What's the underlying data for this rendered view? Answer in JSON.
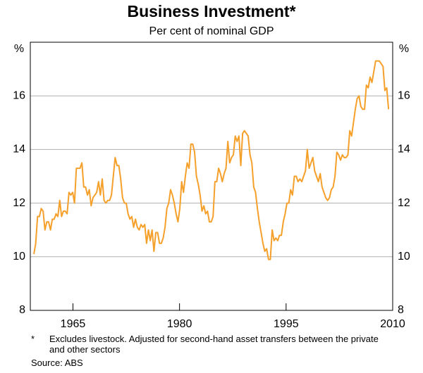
{
  "chart_data": {
    "type": "line",
    "title": "Business Investment*",
    "subtitle": "Per cent of nominal GDP",
    "y_unit": "%",
    "footnote_marker": "*",
    "footnote": "Excludes livestock. Adjusted for second-hand asset transfers between the private and other sectors",
    "source": "Source: ABS",
    "xlim": [
      1959,
      2010
    ],
    "xticks": [
      1965,
      1980,
      1995,
      2010
    ],
    "ylim": [
      8,
      18
    ],
    "yticks": [
      8,
      10,
      12,
      14,
      16
    ],
    "grid": true,
    "series": [
      {
        "color": "#f5a02a",
        "x": [
          1959.5,
          1959.76,
          1960.02,
          1960.28,
          1960.54,
          1960.8,
          1961.06,
          1961.32,
          1961.58,
          1961.84,
          1962.1,
          1962.36,
          1962.62,
          1962.88,
          1963.14,
          1963.4,
          1963.66,
          1963.92,
          1964.18,
          1964.44,
          1964.7,
          1964.96,
          1965.22,
          1965.48,
          1965.74,
          1966,
          1966.26,
          1966.52,
          1966.78,
          1967.04,
          1967.3,
          1967.56,
          1967.82,
          1968.08,
          1968.34,
          1968.6,
          1968.86,
          1969.12,
          1969.38,
          1969.64,
          1969.9,
          1970.16,
          1970.42,
          1970.68,
          1970.94,
          1971.2,
          1971.46,
          1971.72,
          1971.98,
          1972.24,
          1972.5,
          1972.76,
          1973.02,
          1973.28,
          1973.54,
          1973.8,
          1974.06,
          1974.32,
          1974.58,
          1974.84,
          1975.1,
          1975.36,
          1975.62,
          1975.88,
          1976.14,
          1976.4,
          1976.66,
          1976.92,
          1977.18,
          1977.44,
          1977.7,
          1977.96,
          1978.22,
          1978.48,
          1978.74,
          1979,
          1979.26,
          1979.52,
          1979.78,
          1980.04,
          1980.3,
          1980.56,
          1980.82,
          1981.08,
          1981.34,
          1981.6,
          1981.86,
          1982.12,
          1982.38,
          1982.64,
          1982.9,
          1983.16,
          1983.42,
          1983.68,
          1983.94,
          1984.2,
          1984.46,
          1984.72,
          1984.98,
          1985.24,
          1985.5,
          1985.76,
          1986.02,
          1986.28,
          1986.54,
          1986.8,
          1987.06,
          1987.32,
          1987.58,
          1987.84,
          1988.1,
          1988.36,
          1988.62,
          1988.88,
          1989.14,
          1989.4,
          1989.66,
          1989.92,
          1990.18,
          1990.44,
          1990.7,
          1990.96,
          1991.22,
          1991.48,
          1991.74,
          1992,
          1992.26,
          1992.52,
          1992.78,
          1993.04,
          1993.3,
          1993.56,
          1993.82,
          1994.08,
          1994.34,
          1994.6,
          1994.86,
          1995.12,
          1995.38,
          1995.64,
          1995.9,
          1996.16,
          1996.42,
          1996.68,
          1996.94,
          1997.2,
          1997.46,
          1997.72,
          1997.98,
          1998.24,
          1998.5,
          1998.76,
          1999.02,
          1999.28,
          1999.54,
          1999.8,
          2000.06,
          2000.32,
          2000.58,
          2000.84,
          2001.1,
          2001.36,
          2001.62,
          2001.88,
          2002.14,
          2002.4,
          2002.66,
          2002.92,
          2003.18,
          2003.44,
          2003.7,
          2003.96,
          2004.22,
          2004.48,
          2004.74,
          2005,
          2005.26,
          2005.52,
          2005.78,
          2006.04,
          2006.3,
          2006.56,
          2006.82,
          2007.08,
          2007.34,
          2007.6,
          2007.86,
          2008.12,
          2008.38,
          2008.64,
          2008.9,
          2009.16,
          2009.42
        ],
        "values": [
          10.1,
          10.5,
          11.5,
          11.5,
          11.8,
          11.7,
          11.0,
          11.3,
          11.3,
          11.0,
          11.4,
          11.4,
          11.6,
          11.5,
          12.1,
          11.5,
          11.7,
          11.7,
          11.6,
          12.4,
          12.3,
          12.4,
          12.0,
          13.3,
          13.3,
          13.3,
          13.5,
          12.6,
          12.6,
          12.3,
          12.5,
          11.9,
          12.2,
          12.3,
          12.4,
          12.8,
          12.3,
          12.9,
          12.1,
          12.0,
          12.1,
          12.1,
          12.3,
          13.0,
          13.7,
          13.4,
          13.4,
          12.9,
          12.2,
          12.0,
          12.0,
          11.6,
          11.4,
          11.5,
          11.1,
          11.4,
          11.1,
          11.0,
          11.2,
          11.1,
          11.2,
          10.5,
          11.0,
          10.6,
          11.0,
          10.2,
          10.9,
          10.9,
          10.5,
          10.5,
          10.7,
          11.1,
          11.8,
          12.0,
          12.5,
          12.3,
          12.0,
          11.6,
          11.3,
          11.8,
          12.8,
          12.4,
          13.0,
          13.5,
          13.3,
          14.2,
          14.2,
          13.9,
          13.0,
          12.7,
          12.3,
          11.7,
          11.9,
          11.6,
          11.7,
          11.3,
          11.3,
          11.5,
          12.8,
          12.8,
          13.3,
          13.1,
          12.8,
          13.1,
          13.3,
          14.3,
          13.5,
          13.7,
          13.8,
          14.5,
          14.3,
          14.5,
          13.4,
          14.6,
          14.7,
          14.6,
          14.5,
          13.8,
          13.5,
          12.6,
          12.4,
          11.8,
          11.3,
          10.9,
          10.5,
          10.2,
          10.3,
          9.9,
          9.9,
          11.0,
          10.6,
          10.7,
          10.6,
          10.8,
          10.8,
          11.3,
          11.6,
          12.0,
          12.0,
          12.5,
          12.3,
          13.0,
          13.0,
          12.8,
          12.9,
          12.8,
          13.0,
          13.2,
          14.0,
          13.3,
          13.5,
          13.7,
          13.2,
          13.0,
          12.8,
          13.1,
          12.6,
          12.4,
          12.2,
          12.1,
          12.2,
          12.5,
          12.6,
          13.0,
          13.9,
          13.8,
          13.6,
          13.8,
          13.7,
          13.7,
          13.8,
          14.7,
          14.5,
          15.0,
          15.5,
          15.9,
          16.0,
          15.6,
          15.5,
          15.5,
          16.4,
          16.3,
          16.7,
          16.5,
          16.9,
          17.3,
          17.3,
          17.3,
          17.2,
          17.1,
          16.2,
          16.3,
          15.5
        ]
      }
    ]
  }
}
